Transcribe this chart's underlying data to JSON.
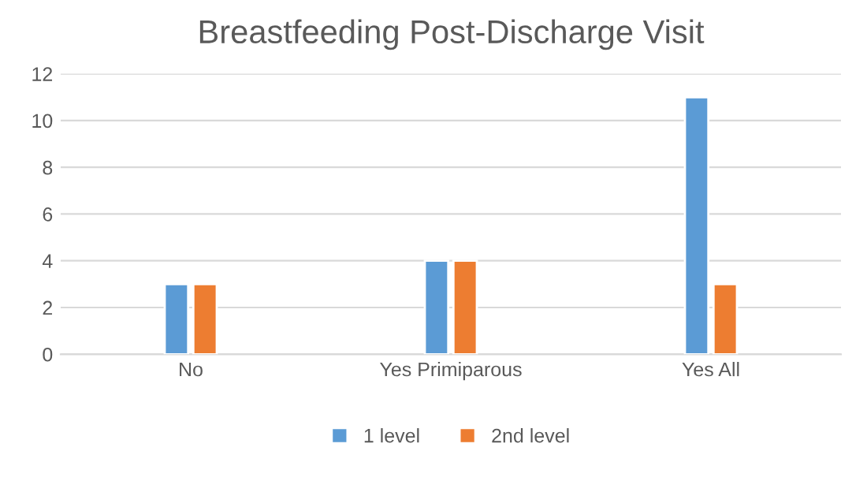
{
  "chart_data": {
    "type": "bar",
    "title": "Breastfeeding Post-Discharge Visit",
    "categories": [
      "No",
      "Yes Primiparous",
      "Yes All"
    ],
    "series": [
      {
        "name": "1 level",
        "color": "#5b9bd5",
        "values": [
          3,
          4,
          11
        ]
      },
      {
        "name": "2nd level",
        "color": "#ed7d31",
        "values": [
          3,
          4,
          3
        ]
      }
    ],
    "ylim": [
      0,
      12
    ],
    "yticks": [
      0,
      2,
      4,
      6,
      8,
      10,
      12
    ],
    "grid": "y",
    "legend": "bottom"
  }
}
